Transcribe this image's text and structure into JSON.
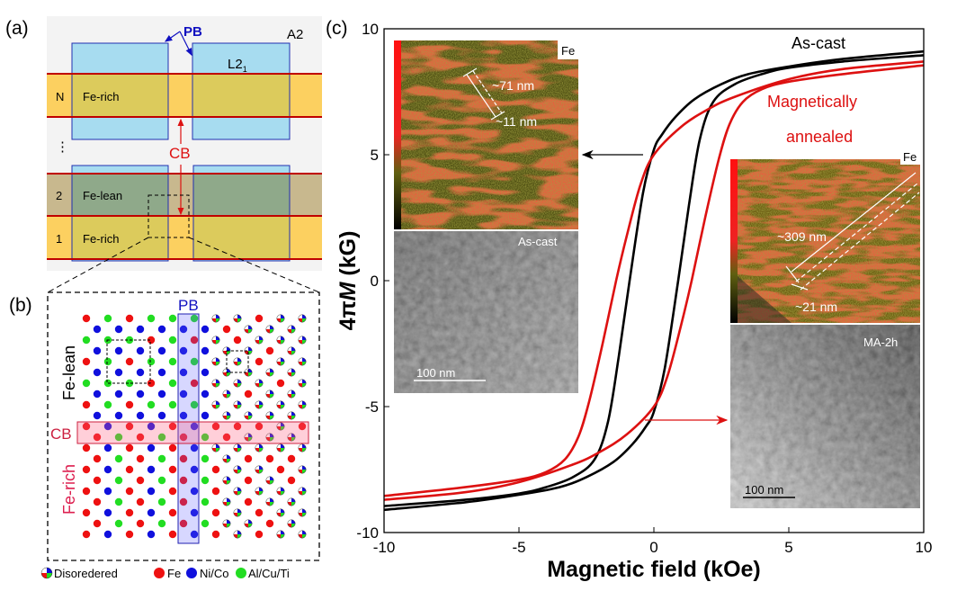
{
  "panel_a": {
    "label": "(a)",
    "pb": "PB",
    "a2": "A2",
    "l21": "L2",
    "l21_sub": "1",
    "cb": "CB",
    "dots": "⋮",
    "rows": [
      {
        "index": "N",
        "name": "Fe-rich"
      },
      {
        "index": "2",
        "name": "Fe-lean"
      },
      {
        "index": "1",
        "name": "Fe-rich"
      }
    ],
    "colors": {
      "fe_rich": "#fcd060",
      "fe_lean": "#c8b88e",
      "grain": "#a7dcf0",
      "boundary": "#c00000",
      "pb": "#1010c0"
    }
  },
  "panel_b": {
    "label": "(b)",
    "pb": "PB",
    "cb": "CB",
    "fe_lean": "Fe-lean",
    "fe_rich": "Fe-rich",
    "legend": [
      {
        "label": "Disoredered",
        "icon": "disordered-pie-icon"
      },
      {
        "label": "Fe",
        "color": "#ee1111"
      },
      {
        "label": "Ni/Co",
        "color": "#1010dd"
      },
      {
        "label": "Al/Cu/Ti",
        "color": "#22dd22"
      }
    ]
  },
  "chart_data": {
    "panel_label": "(c)",
    "type": "line",
    "xlabel": "Magnetic field (kOe)",
    "ylabel_prefix": "4π",
    "ylabel_var": "M",
    "ylabel_unit": " (kG)",
    "xlim": [
      -10,
      10
    ],
    "ylim": [
      -10,
      10
    ],
    "xticks": [
      "-10",
      "-5",
      "0",
      "5",
      "10"
    ],
    "yticks": [
      "-10",
      "-5",
      "0",
      "5",
      "10"
    ],
    "grid": false,
    "series": [
      {
        "name": "As-cast",
        "color": "#000000",
        "descending_branch": {
          "x": [
            10,
            7,
            5,
            3.5,
            2.5,
            1.5,
            0.8,
            0.3,
            0,
            -0.4,
            -0.9,
            -1.3,
            -1.7,
            -2.2,
            -3,
            -4,
            -5,
            -7,
            -10
          ],
          "y": [
            9.1,
            8.8,
            8.5,
            8.2,
            7.8,
            7.2,
            6.5,
            5.8,
            5.2,
            3.5,
            0,
            -3,
            -5.6,
            -7.1,
            -7.8,
            -8.2,
            -8.45,
            -8.7,
            -8.95
          ]
        },
        "ascending_branch": "point-symmetric to descending branch"
      },
      {
        "name": "Magnetically annealed",
        "color": "#dd1111",
        "descending_branch": {
          "x": [
            10,
            7,
            5,
            3,
            2,
            1,
            0,
            -0.5,
            -1,
            -1.4,
            -1.9,
            -2.4,
            -2.8,
            -3.3,
            -4,
            -5,
            -7,
            -10
          ],
          "y": [
            8.7,
            8.4,
            8.0,
            7.3,
            6.8,
            6.1,
            5.0,
            3.8,
            1.8,
            0,
            -2.5,
            -4.8,
            -6.2,
            -7.1,
            -7.6,
            -7.9,
            -8.2,
            -8.55
          ]
        },
        "ascending_branch": "point-symmetric to descending branch"
      }
    ],
    "annotations": {
      "as_cast": "As-cast",
      "ma_line1": "Magnetically",
      "ma_line2": "annealed"
    }
  },
  "insets": {
    "left": {
      "element": "Fe",
      "length": "~71 nm",
      "width": "~11 nm",
      "sample": "As-cast",
      "scale": "100 nm"
    },
    "right": {
      "element": "Fe",
      "length": "~309 nm",
      "width": "~21 nm",
      "sample": "MA-2h",
      "scale": "100 nm"
    }
  }
}
